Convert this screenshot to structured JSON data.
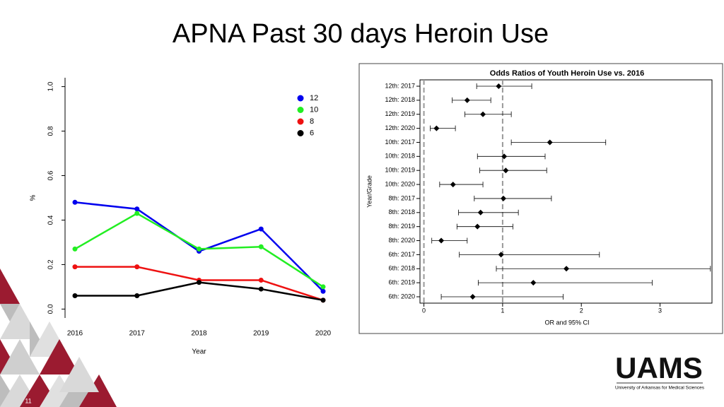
{
  "slide": {
    "title": "APNA Past 30 days Heroin Use",
    "page_number": "11",
    "logo": {
      "name": "UAMS",
      "subtitle": "University of Arkansas for Medical Sciences"
    }
  },
  "chart_data": [
    {
      "type": "line",
      "xlabel": "Year",
      "ylabel": "%",
      "categories": [
        "2016",
        "2017",
        "2018",
        "2019",
        "2020"
      ],
      "series": [
        {
          "name": "12",
          "color": "#0000ee",
          "values": [
            0.48,
            0.45,
            0.26,
            0.36,
            0.08
          ]
        },
        {
          "name": "10",
          "color": "#22ee22",
          "values": [
            0.27,
            0.43,
            0.27,
            0.28,
            0.1
          ]
        },
        {
          "name": "8",
          "color": "#ee1111",
          "values": [
            0.19,
            0.19,
            0.13,
            0.13,
            0.04
          ]
        },
        {
          "name": "6",
          "color": "#000000",
          "values": [
            0.06,
            0.06,
            0.12,
            0.09,
            0.04
          ]
        }
      ],
      "ylim": [
        -0.04,
        1.04
      ],
      "yticks": [
        {
          "value": 0,
          "label": "0.0"
        },
        0.2,
        0.4,
        0.6,
        0.8,
        {
          "value": 1,
          "label": "1.0"
        }
      ],
      "legend": "top-right"
    },
    {
      "type": "forest",
      "title": "Odds Ratios of Youth Heroin Use vs. 2016",
      "xlabel": "OR and 95% CI",
      "ylabel": "Year/Grade",
      "categories": [
        "12th: 2017",
        "12th: 2018",
        "12th: 2019",
        "12th: 2020",
        "10th: 2017",
        "10th: 2018",
        "10th: 2019",
        "10th: 2020",
        "8th: 2017",
        "8th: 2018",
        "8th: 2019",
        "8th: 2020",
        "6th: 2017",
        "6th: 2018",
        "6th: 2019",
        "6th: 2020"
      ],
      "values": [
        0.95,
        0.55,
        0.75,
        0.16,
        1.6,
        1.02,
        1.04,
        0.37,
        1.01,
        0.72,
        0.68,
        0.22,
        0.98,
        1.81,
        1.39,
        0.62
      ],
      "ci_lower": [
        0.67,
        0.36,
        0.52,
        0.08,
        1.11,
        0.68,
        0.71,
        0.2,
        0.64,
        0.44,
        0.42,
        0.1,
        0.45,
        0.92,
        0.69,
        0.22
      ],
      "ci_upper": [
        1.37,
        0.85,
        1.11,
        0.4,
        2.31,
        1.54,
        1.56,
        0.75,
        1.62,
        1.2,
        1.13,
        0.55,
        2.23,
        3.64,
        2.9,
        1.77
      ],
      "color": "#000000",
      "xlim": [
        -0.05,
        3.66
      ],
      "xticks": [
        0,
        1,
        2,
        3
      ],
      "ref_lines": [
        0,
        1
      ]
    }
  ]
}
